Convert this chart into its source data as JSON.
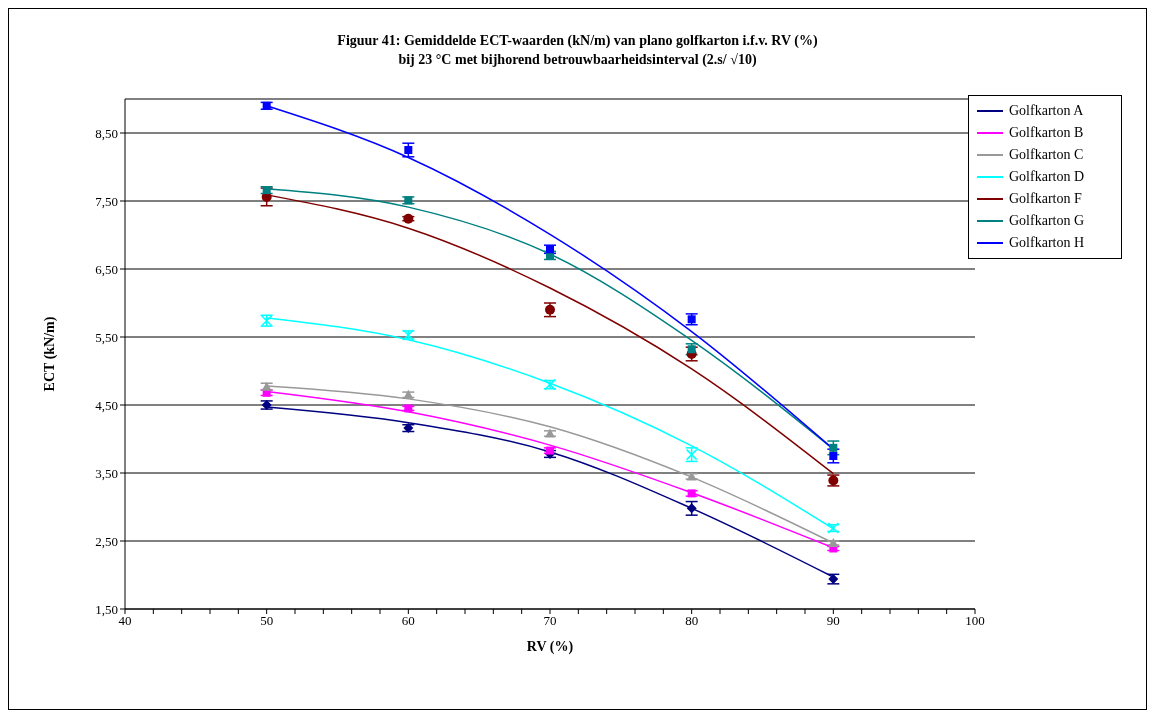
{
  "chart_data": {
    "type": "scatter",
    "title": "Figuur 41: Gemiddelde ECT-waarden (kN/m) van plano golfkarton i.f.v. RV (%)\nbij 23 °C met bijhorend betrouwbaarheidsinterval (2.s/ √10)",
    "xlabel": "RV (%)",
    "ylabel": "ECT (kN/m)",
    "x": [
      50,
      60,
      70,
      80,
      90
    ],
    "xlim": [
      40,
      100
    ],
    "xticks": [
      40,
      {
        "value": 42,
        "label": null
      },
      {
        "value": 44,
        "label": null
      },
      {
        "value": 46,
        "label": null
      },
      {
        "value": 48,
        "label": null
      },
      50,
      {
        "value": 52,
        "label": null
      },
      {
        "value": 54,
        "label": null
      },
      {
        "value": 56,
        "label": null
      },
      {
        "value": 58,
        "label": null
      },
      60,
      {
        "value": 62,
        "label": null
      },
      {
        "value": 64,
        "label": null
      },
      {
        "value": 66,
        "label": null
      },
      {
        "value": 68,
        "label": null
      },
      70,
      {
        "value": 72,
        "label": null
      },
      {
        "value": 74,
        "label": null
      },
      {
        "value": 76,
        "label": null
      },
      {
        "value": 78,
        "label": null
      },
      80,
      {
        "value": 82,
        "label": null
      },
      {
        "value": 84,
        "label": null
      },
      {
        "value": 86,
        "label": null
      },
      {
        "value": 88,
        "label": null
      },
      90,
      {
        "value": 92,
        "label": null
      },
      {
        "value": 94,
        "label": null
      },
      {
        "value": 96,
        "label": null
      },
      {
        "value": 98,
        "label": null
      },
      100
    ],
    "ylim": [
      1.5,
      9.0
    ],
    "yticks": [
      {
        "value": 1.5,
        "label": "1,50"
      },
      {
        "value": 2.5,
        "label": "2,50"
      },
      {
        "value": 3.5,
        "label": "3,50"
      },
      {
        "value": 4.5,
        "label": "4,50"
      },
      {
        "value": 5.5,
        "label": "5,50"
      },
      {
        "value": 6.5,
        "label": "6,50"
      },
      {
        "value": 7.5,
        "label": "7,50"
      },
      {
        "value": 8.5,
        "label": "8,50"
      }
    ],
    "grid": "y",
    "legend": "top right",
    "series": [
      {
        "color": "#000080",
        "marker": "diamond",
        "values": [
          4.5,
          4.16,
          3.78,
          2.98,
          1.94
        ],
        "errors": [
          0.06,
          0.05,
          0.05,
          0.1,
          0.07
        ]
      },
      {
        "color": "#ff00ff",
        "marker": "square",
        "values": [
          4.68,
          4.45,
          3.83,
          3.2,
          2.39
        ],
        "errors": [
          0.04,
          0.03,
          0.04,
          0.04,
          0.03
        ]
      },
      {
        "color": "#999999",
        "marker": "triangle",
        "values": [
          4.77,
          4.65,
          4.08,
          3.45,
          2.47
        ],
        "errors": [
          0.05,
          0.04,
          0.04,
          0.04,
          0.03
        ]
      },
      {
        "color": "#00ffff",
        "marker": "cross",
        "values": [
          5.74,
          5.53,
          4.8,
          3.77,
          2.69
        ],
        "errors": [
          0.08,
          0.06,
          0.06,
          0.1,
          0.05
        ]
      },
      {
        "color": "#800000",
        "marker": "circle",
        "values": [
          7.56,
          7.24,
          5.9,
          5.25,
          3.39
        ],
        "errors": [
          0.13,
          0.03,
          0.1,
          0.1,
          0.08
        ]
      },
      {
        "color": "#008080",
        "marker": "square",
        "values": [
          7.66,
          7.51,
          6.7,
          5.32,
          3.87
        ],
        "errors": [
          0.05,
          0.05,
          0.06,
          0.08,
          0.1
        ]
      },
      {
        "color": "#0000ff",
        "marker": "square",
        "values": [
          8.9,
          8.25,
          6.79,
          5.76,
          3.75
        ],
        "errors": [
          0.05,
          0.1,
          0.06,
          0.08,
          0.1
        ]
      },
      {
        "type": "line",
        "name": "Golfkarton A",
        "color": "#000080",
        "values": [
          4.47,
          4.24,
          3.81,
          2.98,
          1.97
        ]
      },
      {
        "type": "line",
        "name": "Golfkarton B",
        "color": "#ff00ff",
        "values": [
          4.7,
          4.4,
          3.91,
          3.21,
          2.4
        ]
      },
      {
        "type": "line",
        "name": "Golfkarton C",
        "color": "#999999",
        "values": [
          4.78,
          4.59,
          4.18,
          3.44,
          2.47
        ]
      },
      {
        "type": "line",
        "name": "Golfkarton D",
        "color": "#00ffff",
        "values": [
          5.78,
          5.46,
          4.82,
          3.9,
          2.68
        ]
      },
      {
        "type": "line",
        "name": "Golfkarton F",
        "color": "#800000",
        "values": [
          7.59,
          7.1,
          6.22,
          5.03,
          3.49
        ]
      },
      {
        "type": "line",
        "name": "Golfkarton G",
        "color": "#008080",
        "values": [
          7.68,
          7.41,
          6.72,
          5.45,
          3.85
        ]
      },
      {
        "type": "line",
        "name": "Golfkarton H",
        "color": "#0000ff",
        "values": [
          8.9,
          8.14,
          7.01,
          5.58,
          3.85
        ]
      }
    ]
  }
}
